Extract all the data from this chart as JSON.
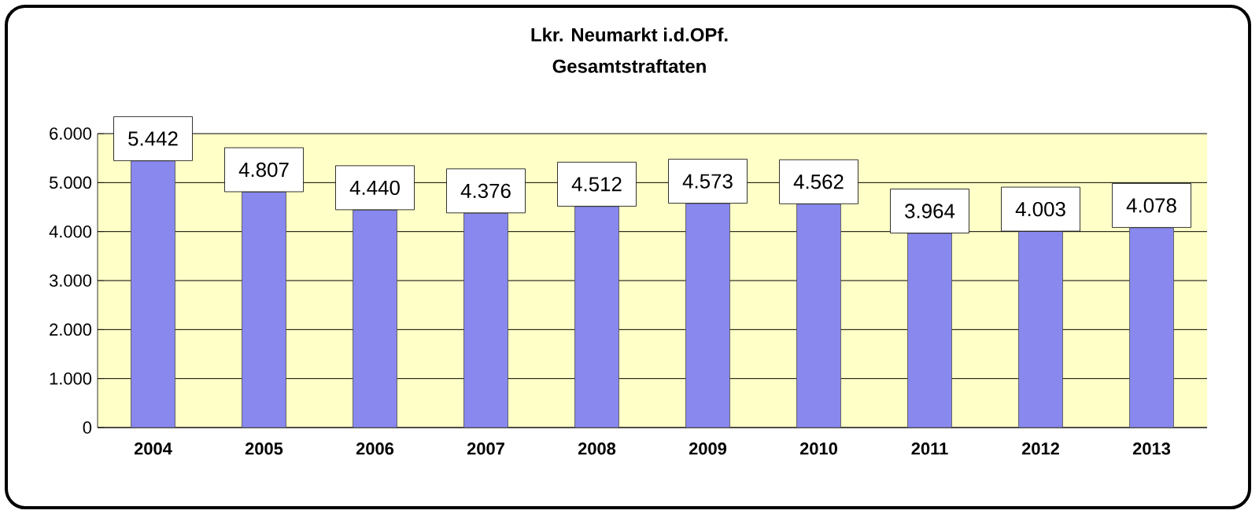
{
  "chart_data": {
    "type": "bar",
    "title": "Lkr. Neumarkt i.d.OPf.",
    "subtitle": "Gesamtstraftaten",
    "categories": [
      "2004",
      "2005",
      "2006",
      "2007",
      "2008",
      "2009",
      "2010",
      "2011",
      "2012",
      "2013"
    ],
    "values": [
      5442,
      4807,
      4440,
      4376,
      4512,
      4573,
      4562,
      3964,
      4003,
      4078
    ],
    "value_labels": [
      "5.442",
      "4.807",
      "4.440",
      "4.376",
      "4.512",
      "4.573",
      "4.562",
      "3.964",
      "4.003",
      "4.078"
    ],
    "color": "#8888ee",
    "ylim": [
      0,
      6000
    ],
    "yticks": [
      0,
      {
        "value": 1000,
        "label": "1.000"
      },
      {
        "value": 2000,
        "label": "2.000"
      },
      {
        "value": 3000,
        "label": "3.000"
      },
      {
        "value": 4000,
        "label": "4.000"
      },
      {
        "value": 5000,
        "label": "5.000"
      },
      {
        "value": 6000,
        "label": "6.000"
      }
    ],
    "grid": "y"
  }
}
